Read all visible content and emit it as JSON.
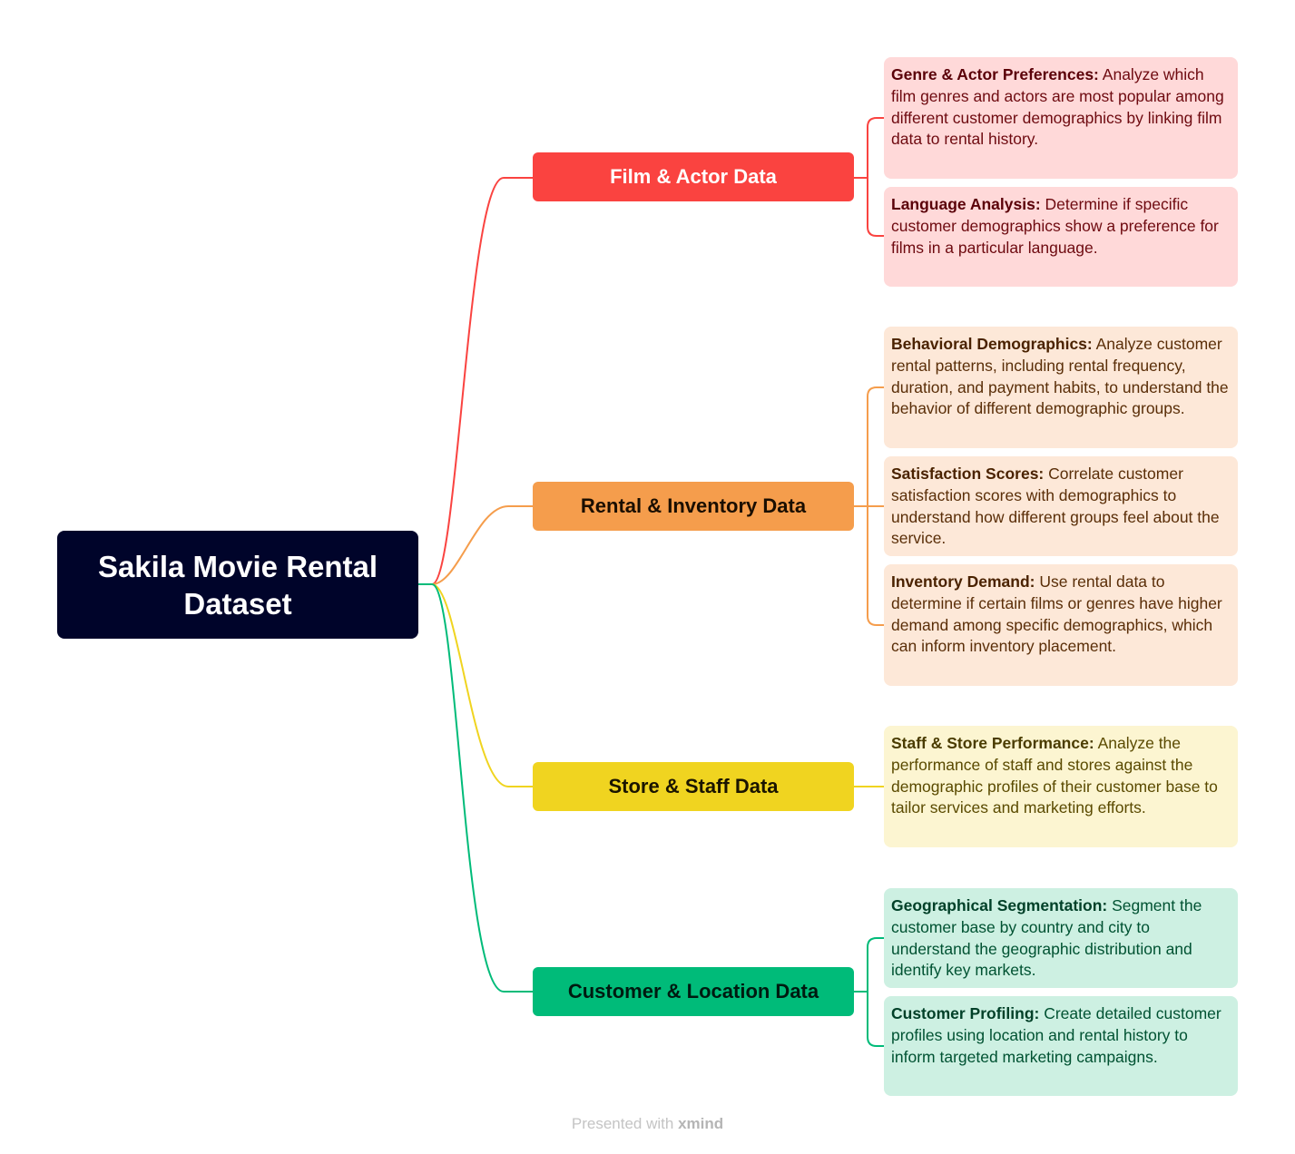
{
  "root": {
    "title": "Sakila Movie Rental Dataset"
  },
  "colors": {
    "root": "#00042a",
    "film": "#fa4340",
    "rental": "#f59d4c",
    "store": "#f0d420",
    "customer": "#00bb79"
  },
  "branches": [
    {
      "label": "Film & Actor Data",
      "leaves": [
        {
          "title": "Genre & Actor Preferences:",
          "text": " Analyze which film genres and actors are most popular among different customer demographics by linking film data to rental history."
        },
        {
          "title": "Language Analysis:",
          "text": " Determine if specific customer demographics show a preference for films in a particular language."
        }
      ]
    },
    {
      "label": "Rental & Inventory Data",
      "leaves": [
        {
          "title": "Behavioral Demographics:",
          "text": " Analyze customer rental patterns, including rental frequency, duration, and payment habits, to understand the behavior of different demographic groups."
        },
        {
          "title": "Satisfaction Scores:",
          "text": " Correlate customer satisfaction scores with demographics to understand how different groups feel about the service."
        },
        {
          "title": "Inventory Demand:",
          "text": " Use rental data to determine if certain films or genres have higher demand among specific demographics, which can inform inventory placement."
        }
      ]
    },
    {
      "label": "Store & Staff Data",
      "leaves": [
        {
          "title": "Staff & Store Performance:",
          "text": " Analyze the performance of staff and stores against the demographic profiles of their customer base to tailor services and marketing efforts."
        }
      ]
    },
    {
      "label": "Customer & Location Data",
      "leaves": [
        {
          "title": "Geographical Segmentation:",
          "text": " Segment the customer base by country and city to understand the geographic distribution and identify key markets."
        },
        {
          "title": "Customer Profiling:",
          "text": " Create detailed customer profiles using location and rental history to inform targeted marketing campaigns."
        }
      ]
    }
  ],
  "footer": {
    "prefix": "Presented with ",
    "brand": "xmind"
  }
}
